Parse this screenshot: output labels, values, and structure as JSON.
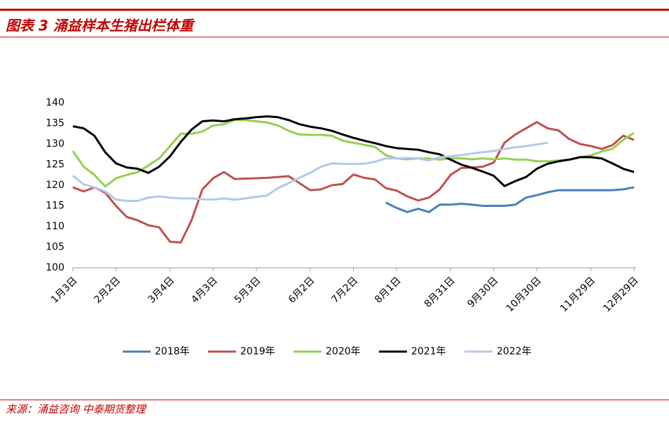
{
  "chart_data": {
    "type": "line",
    "title": "图表 3 涌益样本生猪出栏体重",
    "source": "来源：涌益咨询 中泰期货整理",
    "categories": [
      "1月3日",
      null,
      null,
      null,
      "2月2日",
      null,
      null,
      null,
      null,
      "3月4日",
      null,
      null,
      null,
      "4月3日",
      null,
      null,
      null,
      "5月3日",
      null,
      null,
      null,
      null,
      "6月2日",
      null,
      null,
      null,
      "7月2日",
      null,
      null,
      null,
      "8月1日",
      null,
      null,
      null,
      null,
      "8月31日",
      null,
      null,
      null,
      "9月30日",
      null,
      null,
      null,
      "10月30日",
      null,
      null,
      null,
      null,
      "11月29日",
      null,
      null,
      null,
      "12月29日"
    ],
    "ylim": [
      100,
      140
    ],
    "yticks": [
      100,
      105,
      110,
      115,
      120,
      125,
      130,
      135,
      140
    ],
    "grid": false,
    "legend": "bottom",
    "series": [
      {
        "name": "2018年",
        "color": "#4a7ebb",
        "values": [
          null,
          null,
          null,
          null,
          null,
          null,
          null,
          null,
          null,
          null,
          null,
          null,
          null,
          null,
          null,
          null,
          null,
          null,
          null,
          null,
          null,
          null,
          null,
          null,
          null,
          null,
          null,
          null,
          null,
          115.8,
          114.5,
          113.5,
          114.3,
          113.5,
          115.3,
          115.3,
          115.5,
          115.3,
          115,
          115,
          115,
          115.3,
          117,
          117.6,
          118.3,
          118.8,
          118.8,
          118.8,
          118.8,
          118.8,
          118.8,
          119,
          119.5
        ]
      },
      {
        "name": "2019年",
        "color": "#c0504d",
        "values": [
          119.5,
          118.5,
          119.5,
          118.2,
          115,
          112.3,
          111.5,
          110.3,
          109.8,
          106.3,
          106.1,
          111.5,
          119,
          121.7,
          123.2,
          121.5,
          121.6,
          121.7,
          121.8,
          122,
          122.2,
          120.5,
          118.8,
          119,
          120,
          120.3,
          122.6,
          121.8,
          121.4,
          119.3,
          118.7,
          117.3,
          116.3,
          117,
          119,
          122.5,
          124.2,
          124.3,
          124.5,
          125.5,
          130.3,
          132.3,
          133.8,
          135.3,
          133.8,
          133.3,
          131.2,
          130,
          129.5,
          128.8,
          129.7,
          132,
          131
        ]
      },
      {
        "name": "2020年",
        "color": "#92d050",
        "values": [
          128.3,
          124.5,
          122.5,
          119.7,
          121.7,
          122.5,
          123.2,
          124.8,
          126.5,
          129.5,
          132.5,
          132.5,
          133,
          134.5,
          134.8,
          135.8,
          135.8,
          135.5,
          135.2,
          134.5,
          133.2,
          132.3,
          132.2,
          132.2,
          132,
          130.8,
          130.3,
          129.8,
          129.3,
          127.3,
          126.5,
          126.3,
          126.5,
          126.5,
          126.2,
          126.5,
          126.5,
          126.3,
          126.5,
          126.3,
          126.5,
          126.2,
          126.2,
          125.8,
          125.8,
          126,
          126.2,
          126.8,
          127.2,
          128.2,
          128.8,
          131,
          132.7
        ]
      },
      {
        "name": "2021年",
        "color": "#000000",
        "values": [
          134.3,
          133.8,
          132,
          128,
          125.3,
          124.3,
          124,
          123,
          124.5,
          127,
          130.5,
          133.5,
          135.5,
          135.7,
          135.5,
          136,
          136.2,
          136.5,
          136.7,
          136.5,
          135.8,
          134.8,
          134.2,
          133.8,
          133.2,
          132.3,
          131.5,
          130.8,
          130.2,
          129.5,
          129,
          128.8,
          128.6,
          128,
          127.5,
          126.2,
          125,
          124.2,
          123.3,
          122.3,
          119.8,
          121,
          122,
          124,
          125.2,
          125.8,
          126.2,
          126.8,
          126.8,
          126.5,
          125.3,
          124,
          123.2
        ]
      },
      {
        "name": "2022年",
        "color": "#b4c7e7",
        "values": [
          122.3,
          120.2,
          119.5,
          118.5,
          116.5,
          116.2,
          116.2,
          117,
          117.3,
          117,
          116.8,
          116.8,
          116.6,
          116.5,
          116.8,
          116.5,
          116.8,
          117.2,
          117.5,
          119.3,
          120.5,
          121.8,
          123,
          124.5,
          125.3,
          125.2,
          125.2,
          125.2,
          125.7,
          126.5,
          126.5,
          126.6,
          126.5,
          126,
          126.8,
          127,
          127.3,
          127.7,
          128,
          128.3,
          128.8,
          129.2,
          129.5,
          129.9,
          130.3,
          null,
          null,
          null,
          null,
          null,
          null,
          null,
          null
        ]
      }
    ]
  }
}
